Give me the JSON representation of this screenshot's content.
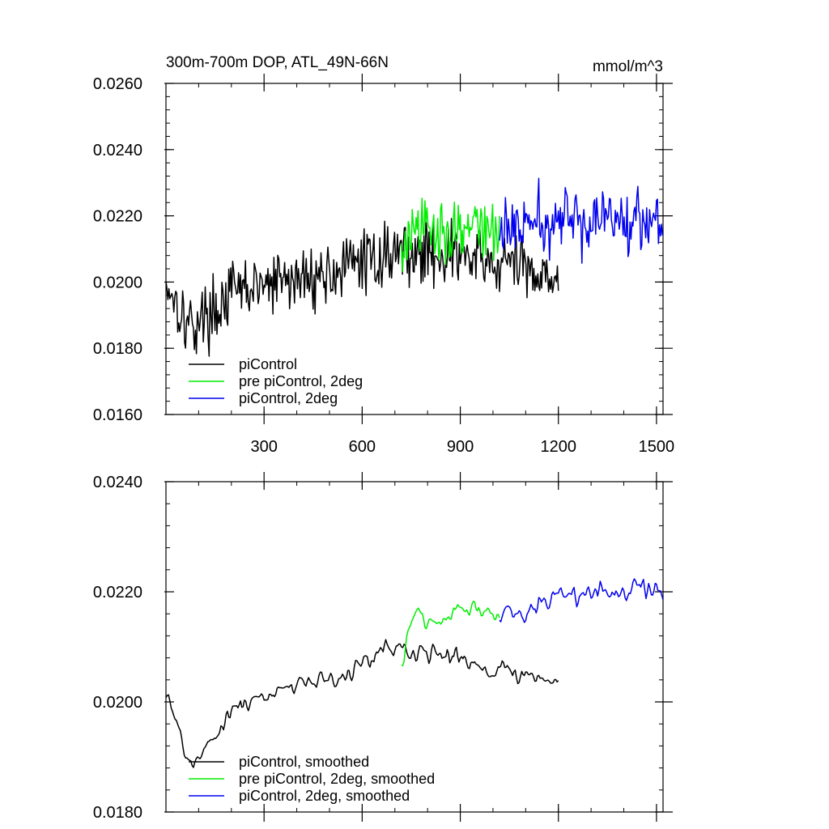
{
  "chart_data": [
    {
      "type": "line",
      "title": "300m-700m DOP, ATL_49N-66N",
      "units": "mmol/m^3",
      "xlim": [
        0,
        1520
      ],
      "ylim": [
        0.016,
        0.026
      ],
      "x_ticks": [
        300,
        600,
        900,
        1200,
        1500
      ],
      "y_ticks": [
        0.016,
        0.018,
        0.02,
        0.022,
        0.024,
        0.026
      ],
      "y_tick_labels": [
        "0.0160",
        "0.0180",
        "0.0200",
        "0.0220",
        "0.0240",
        "0.0260"
      ],
      "x_tick_labels_shown": true,
      "legend_position": "bottom-left",
      "series": [
        {
          "name": "piControl",
          "color": "#000000",
          "x": [
            0,
            30,
            60,
            90,
            120,
            150,
            180,
            210,
            240,
            270,
            300,
            330,
            360,
            390,
            420,
            450,
            480,
            510,
            540,
            570,
            600,
            630,
            660,
            690,
            720,
            750,
            780,
            810,
            840,
            870,
            900,
            930,
            960,
            990,
            1020,
            1050,
            1080,
            1110,
            1140,
            1170,
            1200
          ],
          "y": [
            0.02,
            0.0195,
            0.0188,
            0.0187,
            0.019,
            0.0191,
            0.0195,
            0.0197,
            0.0198,
            0.0198,
            0.0199,
            0.0199,
            0.0201,
            0.02,
            0.0201,
            0.0202,
            0.0202,
            0.0203,
            0.0204,
            0.0205,
            0.0207,
            0.0206,
            0.0208,
            0.0209,
            0.021,
            0.0209,
            0.0208,
            0.0209,
            0.0208,
            0.0209,
            0.0208,
            0.0207,
            0.0206,
            0.0205,
            0.0205,
            0.0206,
            0.0205,
            0.0204,
            0.0203,
            0.0203,
            0.0202
          ]
        },
        {
          "name": "pre piControl, 2deg",
          "color": "#00ee00",
          "x": [
            720,
            750,
            780,
            810,
            840,
            870,
            900,
            930,
            960,
            990,
            1020
          ],
          "y": [
            0.0208,
            0.0214,
            0.0216,
            0.0215,
            0.0216,
            0.0215,
            0.0217,
            0.0216,
            0.0217,
            0.0216,
            0.0215
          ]
        },
        {
          "name": "piControl, 2deg",
          "color": "#0000ee",
          "x": [
            1020,
            1050,
            1080,
            1110,
            1140,
            1170,
            1200,
            1230,
            1260,
            1290,
            1320,
            1350,
            1380,
            1410,
            1440,
            1470,
            1500,
            1520
          ],
          "y": [
            0.0215,
            0.0217,
            0.0216,
            0.0217,
            0.0218,
            0.0217,
            0.0218,
            0.0219,
            0.0218,
            0.0219,
            0.022,
            0.0219,
            0.0218,
            0.0219,
            0.022,
            0.0219,
            0.022,
            0.022
          ]
        }
      ]
    },
    {
      "type": "line",
      "title": "",
      "xlim": [
        0,
        1520
      ],
      "ylim": [
        0.018,
        0.024
      ],
      "x_ticks": [
        300,
        600,
        900,
        1200,
        1500
      ],
      "y_ticks": [
        0.018,
        0.02,
        0.022,
        0.024
      ],
      "y_tick_labels": [
        "0.0180",
        "0.0200",
        "0.0220",
        "0.0240"
      ],
      "x_tick_labels_shown": false,
      "legend_position": "bottom-left",
      "series": [
        {
          "name": "piControl, smoothed",
          "color": "#000000",
          "x": [
            0,
            30,
            60,
            90,
            120,
            150,
            180,
            210,
            240,
            270,
            300,
            330,
            360,
            390,
            420,
            450,
            480,
            510,
            540,
            570,
            600,
            630,
            660,
            690,
            720,
            750,
            780,
            810,
            840,
            870,
            900,
            930,
            960,
            990,
            1020,
            1050,
            1080,
            1110,
            1140,
            1170,
            1200
          ],
          "y": [
            0.0202,
            0.0196,
            0.0191,
            0.0189,
            0.0192,
            0.0193,
            0.0197,
            0.0199,
            0.02,
            0.02,
            0.0201,
            0.0201,
            0.0203,
            0.0202,
            0.0203,
            0.0204,
            0.0204,
            0.0205,
            0.0205,
            0.0206,
            0.0208,
            0.0207,
            0.0209,
            0.0209,
            0.021,
            0.0209,
            0.0209,
            0.0209,
            0.0208,
            0.0209,
            0.0208,
            0.0207,
            0.0206,
            0.0206,
            0.0205,
            0.0206,
            0.0205,
            0.0205,
            0.0204,
            0.0204,
            0.0203
          ]
        },
        {
          "name": "pre piControl, 2deg, smoothed",
          "color": "#00ee00",
          "x": [
            720,
            750,
            780,
            810,
            840,
            870,
            900,
            930,
            960,
            990,
            1020
          ],
          "y": [
            0.0207,
            0.0214,
            0.0217,
            0.0215,
            0.0216,
            0.0215,
            0.0217,
            0.0216,
            0.0217,
            0.0216,
            0.0215
          ]
        },
        {
          "name": "piControl, 2deg, smoothed",
          "color": "#0000ee",
          "x": [
            1020,
            1050,
            1080,
            1110,
            1140,
            1170,
            1200,
            1230,
            1260,
            1290,
            1320,
            1350,
            1380,
            1410,
            1440,
            1470,
            1500,
            1520
          ],
          "y": [
            0.0215,
            0.0217,
            0.0216,
            0.0217,
            0.0218,
            0.0218,
            0.0219,
            0.022,
            0.0219,
            0.022,
            0.0221,
            0.022,
            0.0219,
            0.022,
            0.0221,
            0.022,
            0.0221,
            0.0221
          ]
        }
      ]
    }
  ]
}
